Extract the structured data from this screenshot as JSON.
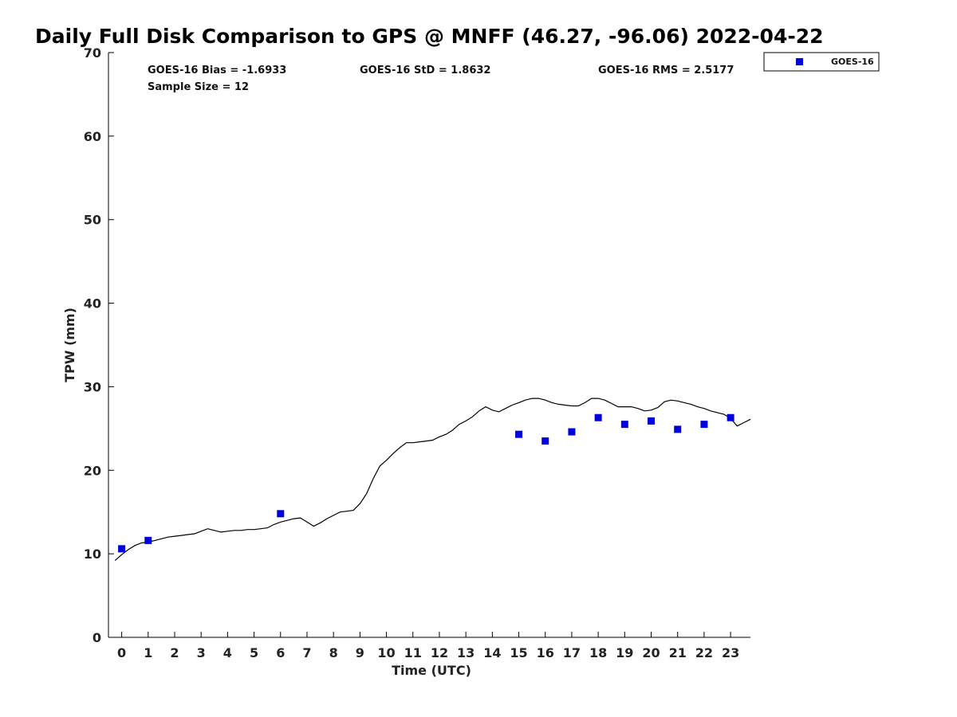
{
  "chart_data": {
    "type": "scatter",
    "title": "Daily Full Disk Comparison to GPS @ MNFF (46.27, -96.06) 2022-04-22",
    "xlabel": "Time (UTC)",
    "ylabel": "TPW (mm)",
    "xlim": [
      -0.5,
      23.75
    ],
    "ylim": [
      0,
      70
    ],
    "xticks": [
      0,
      1,
      2,
      3,
      4,
      5,
      6,
      7,
      8,
      9,
      10,
      11,
      12,
      13,
      14,
      15,
      16,
      17,
      18,
      19,
      20,
      21,
      22,
      23
    ],
    "yticks": [
      0,
      10,
      20,
      30,
      40,
      50,
      60,
      70
    ],
    "grid": false,
    "legend_position": "top-right",
    "stats": {
      "bias": "GOES-16 Bias = -1.6933",
      "std": "GOES-16 StD = 1.8632",
      "rms": "GOES-16 RMS = 2.5177",
      "sample": "Sample Size = 12"
    },
    "series": [
      {
        "name": "GOES-16",
        "kind": "scatter",
        "color": "#0000dd",
        "x": [
          0,
          1,
          6,
          15,
          16,
          17,
          18,
          19,
          20,
          21,
          22,
          23
        ],
        "y": [
          10.6,
          11.6,
          14.8,
          24.3,
          23.5,
          24.6,
          26.3,
          25.5,
          25.9,
          24.9,
          25.5,
          26.3
        ]
      },
      {
        "kind": "line",
        "color": "#000000",
        "x": [
          -0.25,
          0.0,
          0.25,
          0.5,
          0.75,
          1.0,
          1.25,
          1.5,
          1.75,
          2.0,
          2.25,
          2.5,
          2.75,
          3.0,
          3.25,
          3.5,
          3.75,
          4.0,
          4.25,
          4.5,
          4.75,
          5.0,
          5.25,
          5.5,
          5.75,
          6.0,
          6.25,
          6.5,
          6.75,
          7.0,
          7.25,
          7.5,
          7.75,
          8.0,
          8.25,
          8.5,
          8.75,
          9.0,
          9.25,
          9.5,
          9.75,
          10.0,
          10.25,
          10.5,
          10.75,
          11.0,
          11.25,
          11.5,
          11.75,
          12.0,
          12.25,
          12.5,
          12.75,
          13.0,
          13.25,
          13.5,
          13.75,
          14.0,
          14.25,
          14.5,
          14.75,
          15.0,
          15.25,
          15.5,
          15.75,
          16.0,
          16.25,
          16.5,
          16.75,
          17.0,
          17.25,
          17.5,
          17.75,
          18.0,
          18.25,
          18.5,
          18.75,
          19.0,
          19.25,
          19.5,
          19.75,
          20.0,
          20.25,
          20.5,
          20.75,
          21.0,
          21.25,
          21.5,
          21.75,
          22.0,
          22.25,
          22.5,
          22.75,
          23.0,
          23.25,
          23.5,
          23.75
        ],
        "y": [
          9.2,
          9.9,
          10.5,
          11.0,
          11.3,
          11.4,
          11.6,
          11.8,
          12.0,
          12.1,
          12.2,
          12.3,
          12.4,
          12.7,
          13.0,
          12.8,
          12.6,
          12.7,
          12.8,
          12.8,
          12.9,
          12.9,
          13.0,
          13.1,
          13.5,
          13.8,
          14.0,
          14.2,
          14.3,
          13.8,
          13.3,
          13.7,
          14.2,
          14.6,
          15.0,
          15.1,
          15.2,
          16.0,
          17.2,
          19.0,
          20.5,
          21.2,
          22.0,
          22.7,
          23.3,
          23.3,
          23.4,
          23.5,
          23.6,
          24.0,
          24.3,
          24.8,
          25.5,
          25.9,
          26.4,
          27.1,
          27.6,
          27.2,
          27.0,
          27.4,
          27.8,
          28.1,
          28.4,
          28.6,
          28.6,
          28.4,
          28.1,
          27.9,
          27.8,
          27.7,
          27.7,
          28.1,
          28.6,
          28.6,
          28.4,
          28.0,
          27.6,
          27.6,
          27.6,
          27.4,
          27.1,
          27.2,
          27.5,
          28.2,
          28.4,
          28.3,
          28.1,
          27.9,
          27.6,
          27.4,
          27.1,
          26.9,
          26.7,
          26.2,
          25.3,
          25.7,
          26.1
        ]
      }
    ]
  }
}
